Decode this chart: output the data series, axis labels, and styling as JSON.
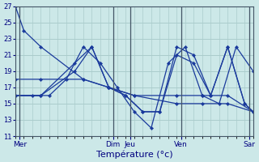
{
  "title": "Température (°c)",
  "background_color": "#cce8e8",
  "grid_color": "#aacccc",
  "line_color": "#1a3a9c",
  "ylim": [
    11,
    27
  ],
  "yticks": [
    11,
    13,
    15,
    17,
    19,
    21,
    23,
    25,
    27
  ],
  "xlim": [
    0,
    28
  ],
  "day_labels": [
    "Mer",
    "Dim",
    "Jeu",
    "Ven",
    "Sar"
  ],
  "day_positions": [
    0.5,
    11.5,
    13.5,
    19.5,
    27.5
  ],
  "day_vlines": [
    0.5,
    11.5,
    13.5,
    19.5,
    27.5
  ],
  "series": [
    {
      "x": [
        0,
        1,
        3,
        8,
        11,
        14,
        19,
        22,
        25,
        28
      ],
      "y": [
        27,
        24,
        22,
        18,
        17,
        16,
        16,
        16,
        16,
        14
      ]
    },
    {
      "x": [
        0,
        3,
        8,
        11,
        14,
        19,
        22,
        25,
        28
      ],
      "y": [
        18,
        18,
        18,
        17,
        16,
        15,
        15,
        15,
        14
      ]
    },
    {
      "x": [
        0,
        2,
        4,
        6,
        8,
        10,
        12,
        14,
        16,
        18,
        20,
        22,
        24,
        26,
        28
      ],
      "y": [
        16,
        16,
        16,
        18,
        22,
        20,
        17,
        14,
        12,
        20,
        22,
        16,
        15,
        22,
        19
      ]
    },
    {
      "x": [
        0,
        3,
        7,
        9,
        11,
        13,
        15,
        17,
        19,
        21,
        23,
        25,
        27,
        28
      ],
      "y": [
        16,
        16,
        20,
        22,
        17,
        16,
        14,
        14,
        22,
        21,
        16,
        22,
        15,
        14
      ]
    },
    {
      "x": [
        0,
        3,
        7,
        9,
        11,
        13,
        15,
        17,
        19,
        21,
        23,
        25,
        27,
        28
      ],
      "y": [
        16,
        16,
        19,
        22,
        17,
        16,
        14,
        14,
        21,
        20,
        16,
        22,
        15,
        14
      ]
    }
  ]
}
